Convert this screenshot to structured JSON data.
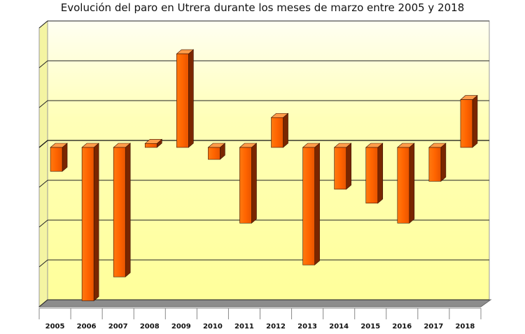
{
  "chart_data": {
    "type": "bar",
    "title": "Evolución del paro en Utrera durante los meses de marzo entre 2005 y 2018",
    "xlabel": "",
    "ylabel": "",
    "categories": [
      "2005",
      "2006",
      "2007",
      "2008",
      "2009",
      "2010",
      "2011",
      "2012",
      "2013",
      "2014",
      "2015",
      "2016",
      "2017",
      "2018"
    ],
    "values": [
      -0.6,
      -3.85,
      -3.25,
      0.1,
      2.35,
      -0.3,
      -1.9,
      0.75,
      -2.95,
      -1.05,
      -1.4,
      -1.9,
      -0.85,
      1.2
    ],
    "ylim": [
      -4,
      3
    ],
    "y_tick_labels_shown": false,
    "grid": true,
    "legend": "none",
    "colors": {
      "bar_front": "#ff6a00",
      "bar_side": "#7a2600",
      "bar_top": "#ff9c4a",
      "plot_back": "#ffffa8",
      "plot_back_light": "#fffff0",
      "left_wall": "#f4f4a2",
      "floor": "#8c8c8c"
    }
  }
}
